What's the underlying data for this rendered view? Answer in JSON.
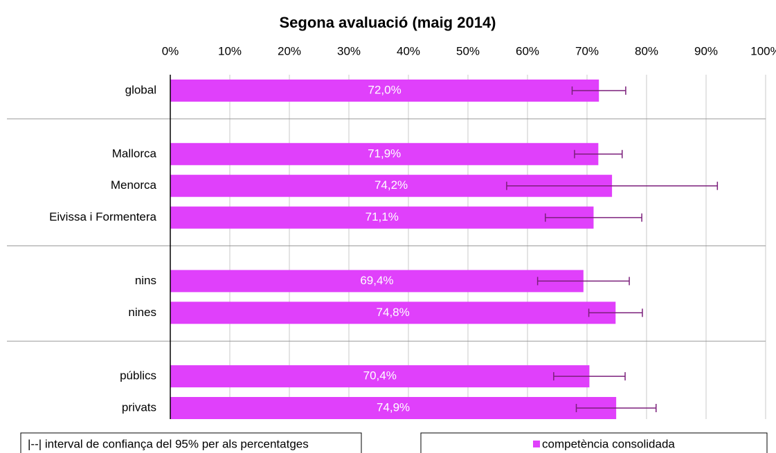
{
  "chart_data": {
    "type": "bar",
    "orientation": "horizontal",
    "title": "Segona avaluació (maig 2014)",
    "categories": [
      "global",
      null,
      "Mallorca",
      "Menorca",
      "Eivissa i Formentera",
      null,
      "nins",
      "nines",
      null,
      "públics",
      "privats"
    ],
    "series": [
      {
        "name": "competència consolidada",
        "color": "#e040fb",
        "values": [
          72.0,
          null,
          71.9,
          74.2,
          71.1,
          null,
          69.4,
          74.8,
          null,
          70.4,
          74.9
        ],
        "value_labels": [
          "72,0%",
          null,
          "71,9%",
          "74,2%",
          "71,1%",
          null,
          "69,4%",
          "74,8%",
          null,
          "70,4%",
          "74,9%"
        ],
        "errors": [
          4.5,
          null,
          4.0,
          17.7,
          8.1,
          null,
          7.7,
          4.5,
          null,
          6.0,
          6.7
        ],
        "error_color": "#7b1f7b"
      }
    ],
    "error_note": "|--| interval de confiança del 95% per als percentatges",
    "xlim": [
      0,
      100
    ],
    "xticks": [
      {
        "value": 0,
        "label": "0%"
      },
      {
        "value": 10,
        "label": "10%"
      },
      {
        "value": 20,
        "label": "20%"
      },
      {
        "value": 30,
        "label": "30%"
      },
      {
        "value": 40,
        "label": "40%"
      },
      {
        "value": 50,
        "label": "50%"
      },
      {
        "value": 60,
        "label": "60%"
      },
      {
        "value": 70,
        "label": "70%"
      },
      {
        "value": 80,
        "label": "80%"
      },
      {
        "value": 90,
        "label": "90%"
      },
      {
        "value": 100,
        "label": "100%"
      }
    ],
    "grid": true,
    "legend": "bottom"
  }
}
